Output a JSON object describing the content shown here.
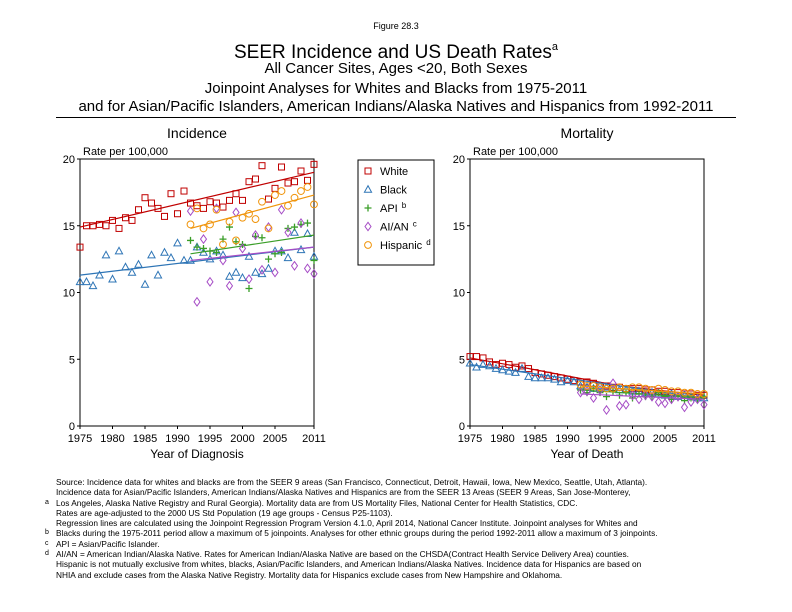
{
  "figure_label": "Figure 28.3",
  "title": "SEER Incidence and US Death Rates",
  "title_sup": "a",
  "subtitle_1": "All Cancer Sites, Ages <20, Both Sexes",
  "subtitle_2": "Joinpoint Analyses for Whites and Blacks from 1975-2011",
  "subtitle_3": "and for Asian/Pacific Islanders, American Indians/Alaska Natives and Hispanics from 1992-2011",
  "colors": {
    "white": "#c00000",
    "black": "#2e75b6",
    "api": "#3a9e28",
    "aian": "#a64dc6",
    "hispanic": "#f0940a"
  },
  "legend": [
    {
      "key": "white",
      "label": "White",
      "sup": "",
      "marker": "square",
      "color": "#c00000"
    },
    {
      "key": "black",
      "label": "Black",
      "sup": "",
      "marker": "triangle",
      "color": "#2e75b6"
    },
    {
      "key": "api",
      "label": "API",
      "sup": "b",
      "marker": "plus",
      "color": "#3a9e28"
    },
    {
      "key": "aian",
      "label": "AI/AN",
      "sup": "c",
      "marker": "diamond",
      "color": "#a64dc6"
    },
    {
      "key": "hispanic",
      "label": "Hispanic",
      "sup": "d",
      "marker": "circle",
      "color": "#f0940a"
    }
  ],
  "chart_data": [
    {
      "type": "scatter",
      "title": "Incidence",
      "ylabel": "Rate per 100,000",
      "xlabel": "Year of Diagnosis",
      "xlim": [
        1975,
        2011
      ],
      "ylim": [
        0,
        20
      ],
      "xticks": [
        "1975",
        "1980",
        "1985",
        "1990",
        "1995",
        "2000",
        "2005",
        "2011"
      ],
      "yticks": [
        "0",
        "5",
        "10",
        "15",
        "20"
      ],
      "series": [
        {
          "name": "White",
          "marker": "square",
          "color": "#c00000",
          "x_start": 1975,
          "values": [
            13.4,
            15.0,
            15.0,
            15.1,
            15.0,
            15.4,
            14.8,
            15.6,
            15.4,
            16.2,
            17.1,
            16.7,
            16.3,
            15.7,
            17.4,
            15.9,
            17.6,
            16.7,
            16.5,
            16.3,
            16.8,
            16.7,
            16.4,
            16.9,
            17.4,
            16.9,
            18.3,
            18.5,
            19.5,
            17.0,
            17.8,
            19.4,
            18.2,
            18.3,
            19.1,
            18.4,
            19.6
          ],
          "trend": [
            [
              1975,
              14.9
            ],
            [
              2011,
              19.0
            ]
          ]
        },
        {
          "name": "Black",
          "marker": "triangle",
          "color": "#2e75b6",
          "x_start": 1975,
          "values": [
            10.8,
            10.8,
            10.5,
            11.3,
            12.8,
            11.0,
            13.1,
            11.9,
            11.5,
            12.1,
            10.6,
            12.8,
            11.3,
            13.0,
            12.6,
            13.7,
            12.4,
            12.4,
            13.4,
            13.0,
            12.5,
            13.1,
            12.8,
            11.2,
            11.5,
            11.1,
            12.7,
            11.5,
            11.4,
            11.8,
            13.1,
            13.1,
            12.6,
            14.5,
            13.2,
            14.4,
            12.7
          ],
          "trend": [
            [
              1975,
              11.3
            ],
            [
              2011,
              13.4
            ]
          ]
        },
        {
          "name": "API",
          "marker": "plus",
          "color": "#3a9e28",
          "x_start": 1992,
          "values": [
            13.9,
            13.4,
            13.3,
            13.1,
            13.0,
            14.0,
            14.9,
            13.8,
            13.6,
            10.3,
            14.2,
            14.1,
            12.5,
            12.9,
            13.0,
            14.8,
            14.9,
            15.1,
            15.2,
            12.4
          ],
          "trend": [
            [
              1992,
              12.9
            ],
            [
              2011,
              14.3
            ]
          ]
        },
        {
          "name": "AI/AN",
          "marker": "diamond",
          "color": "#a64dc6",
          "x_start": 1992,
          "values": [
            16.1,
            9.3,
            14.0,
            10.8,
            16.3,
            12.4,
            10.5,
            16.0,
            13.3,
            11.0,
            14.3,
            11.7,
            14.9,
            11.5,
            16.2,
            14.5,
            12.0,
            15.2,
            11.8,
            11.4
          ],
          "trend": [
            [
              1992,
              12.4
            ],
            [
              2011,
              13.4
            ]
          ]
        },
        {
          "name": "Hispanic",
          "marker": "circle",
          "color": "#f0940a",
          "x_start": 1992,
          "values": [
            15.1,
            16.3,
            14.8,
            15.1,
            16.2,
            13.6,
            15.3,
            13.9,
            15.6,
            15.9,
            15.5,
            16.8,
            14.8,
            17.3,
            17.6,
            16.5,
            17.1,
            17.6,
            17.9,
            16.6
          ],
          "trend": [
            [
              1992,
              14.8
            ],
            [
              2011,
              17.3
            ]
          ]
        }
      ]
    },
    {
      "type": "scatter",
      "title": "Mortality",
      "ylabel": "Rate per 100,000",
      "xlabel": "Year of Death",
      "xlim": [
        1975,
        2011
      ],
      "ylim": [
        0,
        20
      ],
      "xticks": [
        "1975",
        "1980",
        "1985",
        "1990",
        "1995",
        "2000",
        "2005",
        "2011"
      ],
      "yticks": [
        "0",
        "5",
        "10",
        "15",
        "20"
      ],
      "series": [
        {
          "name": "White",
          "marker": "square",
          "color": "#c00000",
          "x_start": 1975,
          "values": [
            5.2,
            5.2,
            5.1,
            4.8,
            4.6,
            4.7,
            4.6,
            4.4,
            4.5,
            4.3,
            4.0,
            3.9,
            3.8,
            3.7,
            3.6,
            3.5,
            3.4,
            3.3,
            3.3,
            3.2,
            3.0,
            3.0,
            2.9,
            2.9,
            2.8,
            2.8,
            2.8,
            2.7,
            2.7,
            2.6,
            2.6,
            2.5,
            2.5,
            2.4,
            2.4,
            2.3,
            2.3
          ],
          "trend": [
            [
              1975,
              5.1
            ],
            [
              1983,
              4.4
            ],
            [
              1998,
              3.0
            ],
            [
              2011,
              2.3
            ]
          ]
        },
        {
          "name": "Black",
          "marker": "triangle",
          "color": "#2e75b6",
          "x_start": 1975,
          "values": [
            4.7,
            4.4,
            4.6,
            4.5,
            4.3,
            4.2,
            4.1,
            4.0,
            4.3,
            3.7,
            3.6,
            3.6,
            3.6,
            3.5,
            3.3,
            3.4,
            3.3,
            3.0,
            2.9,
            2.8,
            3.0,
            2.9,
            2.8,
            2.7,
            2.7,
            2.6,
            2.6,
            2.5,
            2.5,
            2.4,
            2.3,
            2.4,
            2.2,
            2.3,
            2.2,
            2.1,
            2.1
          ],
          "trend": [
            [
              1975,
              4.6
            ],
            [
              2011,
              2.1
            ]
          ]
        },
        {
          "name": "API",
          "marker": "plus",
          "color": "#3a9e28",
          "x_start": 1992,
          "values": [
            2.7,
            2.5,
            2.8,
            2.5,
            2.2,
            2.6,
            2.3,
            2.5,
            2.1,
            2.4,
            2.2,
            2.2,
            2.5,
            2.2,
            2.0,
            2.3,
            1.9,
            2.1,
            2.0,
            2.2
          ],
          "trend": [
            [
              1992,
              2.7
            ],
            [
              2011,
              2.1
            ]
          ]
        },
        {
          "name": "AI/AN",
          "marker": "diamond",
          "color": "#a64dc6",
          "x_start": 1992,
          "values": [
            2.5,
            2.6,
            2.1,
            2.7,
            1.2,
            3.2,
            1.5,
            1.6,
            2.3,
            2.0,
            2.3,
            2.2,
            1.8,
            1.7,
            2.0,
            2.2,
            1.4,
            1.8,
            2.0,
            1.6
          ],
          "trend": [
            [
              1992,
              2.4
            ],
            [
              2011,
              2.0
            ]
          ]
        },
        {
          "name": "Hispanic",
          "marker": "circle",
          "color": "#f0940a",
          "x_start": 1992,
          "values": [
            3.1,
            3.0,
            3.0,
            2.9,
            2.8,
            2.8,
            2.9,
            2.8,
            2.9,
            2.9,
            2.8,
            2.7,
            2.8,
            2.7,
            2.6,
            2.6,
            2.5,
            2.5,
            2.4,
            2.4
          ],
          "trend": [
            [
              1992,
              3.0
            ],
            [
              2011,
              2.4
            ]
          ]
        }
      ]
    }
  ],
  "notes": [
    {
      "mark": "",
      "text": "Source:  Incidence data for whites and blacks are from the SEER 9 areas (San Francisco, Connecticut, Detroit, Hawaii, Iowa, New Mexico, Seattle, Utah, Atlanta)."
    },
    {
      "mark": "",
      "text": "Incidence data for Asian/Pacific Islanders, American Indians/Alaska Natives and Hispanics are from the SEER 13 Areas (SEER 9 Areas, San Jose-Monterey,"
    },
    {
      "mark": "a",
      "text": "Los Angeles, Alaska Native Registry and Rural Georgia).  Mortality data are from US Mortality Files, National Center for Health Statistics, CDC."
    },
    {
      "mark": "",
      "text": "Rates are age-adjusted to the 2000 US Std Population (19 age groups - Census P25-1103)."
    },
    {
      "mark": "",
      "text": "Regression lines are calculated using the Joinpoint Regression Program Version 4.1.0, April 2014, National Cancer Institute.  Joinpoint analyses for Whites and"
    },
    {
      "mark": "b",
      "text": "Blacks during the 1975-2011 period allow a maximum of 5 joinpoints.  Analyses for other ethnic groups during the period 1992-2011 allow a maximum of 3 joinpoints."
    },
    {
      "mark": "c",
      "text": "API = Asian/Pacific Islander."
    },
    {
      "mark": "d",
      "text": "AI/AN = American Indian/Alaska Native.  Rates for American Indian/Alaska Native are based on the CHSDA(Contract Health Service Delivery Area) counties."
    },
    {
      "mark": "",
      "text": "Hispanic is not mutually exclusive from whites, blacks, Asian/Pacific Islanders, and American Indians/Alaska Natives.  Incidence data for Hispanics are based on"
    },
    {
      "mark": "",
      "text": "NHIA and exclude cases from the Alaska Native Registry.  Mortality data for Hispanics exclude cases from New Hampshire and Oklahoma."
    }
  ]
}
